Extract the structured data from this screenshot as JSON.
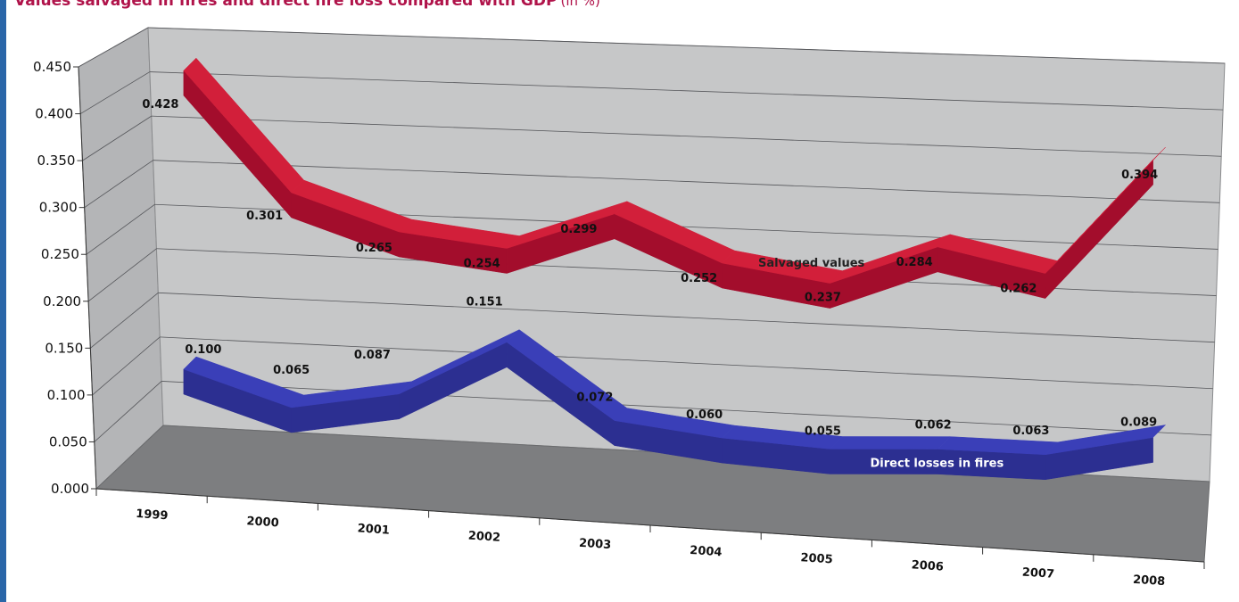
{
  "header": {
    "title": "Values salvaged in fires and direct fire loss compared with GDP",
    "unit": "(in %)"
  },
  "colors": {
    "salvaged": "#a30d2c",
    "salvaged_side": "#d21f3a",
    "direct": "#2c2f91",
    "direct_side": "#3a3fb8",
    "back_wall": "#c6c7c8",
    "side_wall": "#b4b5b7",
    "floor": "#7d7e80",
    "accent_rule": "#2a66a8",
    "title": "#b0134a"
  },
  "chart_data": {
    "type": "line",
    "style": "3d-ribbon",
    "categories": [
      "1999",
      "2000",
      "2001",
      "2002",
      "2003",
      "2004",
      "2005",
      "2006",
      "2007",
      "2008"
    ],
    "ylim": [
      0,
      0.45
    ],
    "yticks": [
      "0.000",
      "0.050",
      "0.100",
      "0.150",
      "0.200",
      "0.250",
      "0.300",
      "0.350",
      "0.400",
      "0.450"
    ],
    "grid": true,
    "legend": "none",
    "series": [
      {
        "name": "Salvaged values",
        "values": [
          0.428,
          0.301,
          0.265,
          0.254,
          0.299,
          0.252,
          0.237,
          0.284,
          0.262,
          0.394
        ],
        "labels": [
          "0.428",
          "0.301",
          "0.265",
          "0.254",
          "0.299",
          "0.252",
          "0.237",
          "0.284",
          "0.262",
          "0.394"
        ]
      },
      {
        "name": "Direct losses in fires",
        "values": [
          0.1,
          0.065,
          0.087,
          0.151,
          0.072,
          0.06,
          0.055,
          0.062,
          0.063,
          0.089
        ],
        "labels": [
          "0.100",
          "0.065",
          "0.087",
          "0.151",
          "0.072",
          "0.060",
          "0.055",
          "0.062",
          "0.063",
          "0.089"
        ]
      }
    ]
  }
}
